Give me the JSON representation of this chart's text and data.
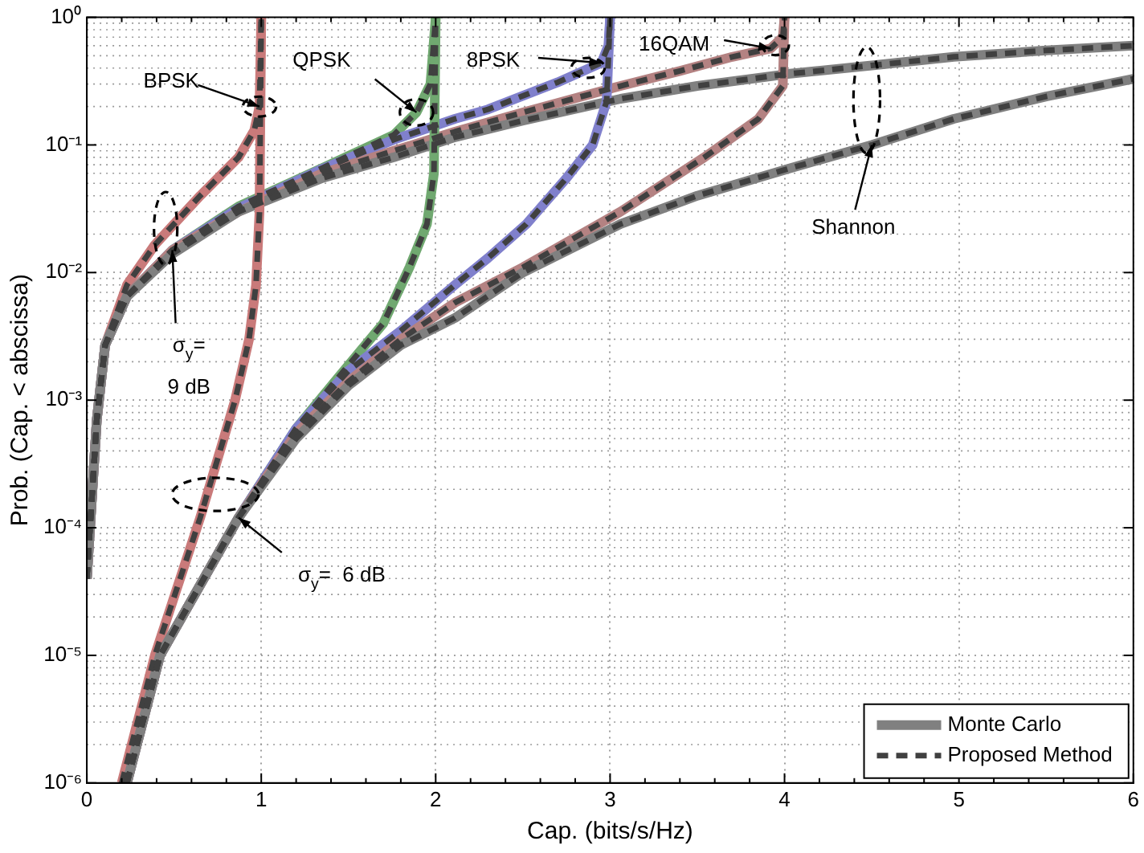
{
  "chart_data": {
    "type": "line",
    "xlabel": "Cap. (bits/s/Hz)",
    "ylabel": "Prob. (Cap. < abscissa)",
    "xlim": [
      0,
      6
    ],
    "xticks": [
      0,
      1,
      2,
      3,
      4,
      5,
      6
    ],
    "ylim": [
      1e-06,
      1
    ],
    "yticks": [
      {
        "value": 1e-06,
        "label": "10⁻⁶"
      },
      {
        "value": 1e-05,
        "label": "10⁻⁵"
      },
      {
        "value": 0.0001,
        "label": "10⁻⁴"
      },
      {
        "value": 0.001,
        "label": "10⁻³"
      },
      {
        "value": 0.01,
        "label": "10⁻²"
      },
      {
        "value": 0.1,
        "label": "10⁻¹"
      },
      {
        "value": 1,
        "label": "10⁰"
      }
    ],
    "log": "y",
    "grid": true,
    "legend": "bottom right",
    "marker": "none",
    "series": [
      {
        "type": "line",
        "color": "#c97a7a",
        "line_style": "solid",
        "x": [
          0,
          0.057,
          0.105,
          0.23,
          0.39,
          0.65,
          0.87,
          0.96,
          0.99,
          1
        ],
        "values": [
          4e-05,
          0.0007,
          0.0027,
          0.008,
          0.0165,
          0.04,
          0.08,
          0.13,
          0.2,
          1
        ]
      },
      {
        "type": "line",
        "color": "#70a870",
        "line_style": "solid",
        "x": [
          0,
          0.057,
          0.105,
          0.23,
          0.49,
          0.87,
          1.35,
          1.76,
          1.89,
          1.97,
          2
        ],
        "values": [
          4e-05,
          0.0007,
          0.0027,
          0.0065,
          0.015,
          0.033,
          0.066,
          0.12,
          0.18,
          0.3,
          1
        ]
      },
      {
        "type": "line",
        "color": "#8080cc",
        "line_style": "solid",
        "x": [
          0,
          0.057,
          0.105,
          0.23,
          0.49,
          0.87,
          1.35,
          1.76,
          2.11,
          2.3,
          2.7,
          2.95,
          2.99,
          3
        ],
        "values": [
          4e-05,
          0.0007,
          0.0027,
          0.0065,
          0.015,
          0.032,
          0.065,
          0.11,
          0.16,
          0.19,
          0.31,
          0.44,
          0.6,
          1
        ]
      },
      {
        "type": "line",
        "color": "#b48282",
        "line_style": "solid",
        "x": [
          0,
          0.057,
          0.105,
          0.23,
          0.49,
          0.87,
          1.35,
          1.76,
          2.11,
          2.5,
          3.06,
          3.4,
          3.7,
          3.92,
          3.99,
          4
        ],
        "values": [
          4e-05,
          0.0007,
          0.0027,
          0.0065,
          0.015,
          0.03,
          0.06,
          0.09,
          0.127,
          0.18,
          0.29,
          0.38,
          0.49,
          0.57,
          0.7,
          1
        ]
      },
      {
        "type": "line",
        "name": "Monte Carlo",
        "color": "#808080",
        "line_style": "solid",
        "x": [
          0,
          0.057,
          0.105,
          0.23,
          0.49,
          0.87,
          1.35,
          1.76,
          2.11,
          2.5,
          3.06,
          3.5,
          4.02,
          4.5,
          4.97,
          5.5,
          6
        ],
        "values": [
          4e-05,
          0.0007,
          0.0027,
          0.0065,
          0.014,
          0.03,
          0.055,
          0.08,
          0.115,
          0.155,
          0.23,
          0.29,
          0.36,
          0.42,
          0.49,
          0.55,
          0.6
        ]
      },
      {
        "type": "line",
        "color": "#c97a7a",
        "line_style": "solid",
        "x": [
          0.2,
          0.39,
          0.65,
          0.85,
          0.93,
          0.97,
          0.99,
          1
        ],
        "values": [
          1e-06,
          1e-05,
          0.00012,
          0.001,
          0.003,
          0.008,
          0.03,
          1
        ]
      },
      {
        "type": "line",
        "color": "#70a870",
        "line_style": "solid",
        "x": [
          0.23,
          0.42,
          0.87,
          1.2,
          1.44,
          1.7,
          1.85,
          1.95,
          1.99,
          2
        ],
        "values": [
          1e-06,
          1e-05,
          0.00012,
          0.0006,
          0.0015,
          0.004,
          0.011,
          0.024,
          0.06,
          1
        ]
      },
      {
        "type": "line",
        "color": "#8080cc",
        "line_style": "solid",
        "x": [
          0.23,
          0.42,
          0.87,
          1.2,
          1.5,
          1.8,
          2.11,
          2.3,
          2.52,
          2.75,
          2.9,
          2.98,
          3
        ],
        "values": [
          1e-06,
          1e-05,
          0.00012,
          0.0006,
          0.0017,
          0.0035,
          0.008,
          0.013,
          0.024,
          0.055,
          0.1,
          0.22,
          1
        ]
      },
      {
        "type": "line",
        "color": "#b48282",
        "line_style": "solid",
        "x": [
          0.23,
          0.42,
          0.87,
          1.2,
          1.5,
          1.8,
          2.11,
          2.5,
          3.06,
          3.54,
          3.85,
          3.99,
          4
        ],
        "values": [
          1e-06,
          1e-05,
          0.00012,
          0.00055,
          0.0014,
          0.003,
          0.0058,
          0.011,
          0.03,
          0.08,
          0.16,
          0.29,
          1
        ]
      },
      {
        "type": "line",
        "color": "#808080",
        "line_style": "solid",
        "x": [
          0.23,
          0.42,
          0.87,
          1.2,
          1.5,
          1.8,
          2.11,
          2.5,
          3.06,
          3.5,
          4.02,
          4.5,
          4.97,
          5.5,
          6
        ],
        "values": [
          1e-06,
          1e-05,
          0.00012,
          0.0005,
          0.0013,
          0.0027,
          0.0044,
          0.01,
          0.024,
          0.04,
          0.065,
          0.1,
          0.16,
          0.24,
          0.33
        ]
      },
      {
        "type": "line",
        "name": "Proposed Method",
        "color": "#404040",
        "line_style": "dashed",
        "x": [
          0,
          0.057,
          0.105,
          0.23,
          0.39,
          0.65,
          0.87,
          0.96,
          0.99,
          1
        ],
        "values": [
          4e-05,
          0.0007,
          0.0027,
          0.008,
          0.0165,
          0.04,
          0.08,
          0.13,
          0.2,
          1
        ]
      },
      {
        "type": "line",
        "color": "#404040",
        "line_style": "dashed",
        "x": [
          0,
          0.057,
          0.105,
          0.23,
          0.49,
          0.87,
          1.35,
          1.76,
          1.89,
          1.97,
          2
        ],
        "values": [
          4e-05,
          0.0007,
          0.0027,
          0.0065,
          0.015,
          0.033,
          0.066,
          0.12,
          0.18,
          0.3,
          1
        ]
      },
      {
        "type": "line",
        "color": "#404040",
        "line_style": "dashed",
        "x": [
          0,
          0.057,
          0.105,
          0.23,
          0.49,
          0.87,
          1.35,
          1.76,
          2.11,
          2.3,
          2.7,
          2.95,
          2.99,
          3
        ],
        "values": [
          4e-05,
          0.0007,
          0.0027,
          0.0065,
          0.015,
          0.032,
          0.065,
          0.11,
          0.16,
          0.19,
          0.31,
          0.44,
          0.6,
          1
        ]
      },
      {
        "type": "line",
        "color": "#404040",
        "line_style": "dashed",
        "x": [
          0,
          0.057,
          0.105,
          0.23,
          0.49,
          0.87,
          1.35,
          1.76,
          2.11,
          2.5,
          3.06,
          3.4,
          3.7,
          3.92,
          3.99,
          4
        ],
        "values": [
          4e-05,
          0.0007,
          0.0027,
          0.0065,
          0.015,
          0.03,
          0.06,
          0.09,
          0.127,
          0.18,
          0.29,
          0.38,
          0.49,
          0.57,
          0.7,
          1
        ]
      },
      {
        "type": "line",
        "color": "#404040",
        "line_style": "dashed",
        "x": [
          0,
          0.057,
          0.105,
          0.23,
          0.49,
          0.87,
          1.35,
          1.76,
          2.11,
          2.5,
          3.06,
          3.5,
          4.02,
          4.5,
          4.97,
          5.5,
          6
        ],
        "values": [
          4e-05,
          0.0007,
          0.0027,
          0.0065,
          0.014,
          0.03,
          0.055,
          0.08,
          0.115,
          0.155,
          0.23,
          0.29,
          0.36,
          0.42,
          0.49,
          0.55,
          0.6
        ]
      },
      {
        "type": "line",
        "color": "#404040",
        "line_style": "dashed",
        "x": [
          0.2,
          0.39,
          0.65,
          0.85,
          0.93,
          0.97,
          0.99,
          1
        ],
        "values": [
          1e-06,
          1e-05,
          0.00012,
          0.001,
          0.003,
          0.008,
          0.03,
          1
        ]
      },
      {
        "type": "line",
        "color": "#404040",
        "line_style": "dashed",
        "x": [
          0.23,
          0.42,
          0.87,
          1.2,
          1.44,
          1.7,
          1.85,
          1.95,
          1.99,
          2
        ],
        "values": [
          1e-06,
          1e-05,
          0.00012,
          0.0006,
          0.0015,
          0.004,
          0.011,
          0.024,
          0.06,
          1
        ]
      },
      {
        "type": "line",
        "color": "#404040",
        "line_style": "dashed",
        "x": [
          0.23,
          0.42,
          0.87,
          1.2,
          1.5,
          1.8,
          2.11,
          2.3,
          2.52,
          2.75,
          2.9,
          2.98,
          3
        ],
        "values": [
          1e-06,
          1e-05,
          0.00012,
          0.0006,
          0.0017,
          0.0035,
          0.008,
          0.013,
          0.024,
          0.055,
          0.1,
          0.22,
          1
        ]
      },
      {
        "type": "line",
        "color": "#404040",
        "line_style": "dashed",
        "x": [
          0.23,
          0.42,
          0.87,
          1.2,
          1.5,
          1.8,
          2.11,
          2.5,
          3.06,
          3.54,
          3.85,
          3.99,
          4
        ],
        "values": [
          1e-06,
          1e-05,
          0.00012,
          0.00055,
          0.0014,
          0.003,
          0.0058,
          0.011,
          0.03,
          0.08,
          0.16,
          0.29,
          1
        ]
      },
      {
        "type": "line",
        "color": "#404040",
        "line_style": "dashed",
        "x": [
          0.23,
          0.42,
          0.87,
          1.2,
          1.5,
          1.8,
          2.11,
          2.5,
          3.06,
          3.5,
          4.02,
          4.5,
          4.97,
          5.5,
          6
        ],
        "values": [
          1e-06,
          1e-05,
          0.00012,
          0.0005,
          0.0013,
          0.0027,
          0.0044,
          0.01,
          0.024,
          0.04,
          0.065,
          0.1,
          0.16,
          0.24,
          0.33
        ]
      }
    ],
    "annotations": [
      {
        "text": "BPSK",
        "x": 0.99,
        "y": 0.2
      },
      {
        "text": "QPSK",
        "x": 1.89,
        "y": 0.18
      },
      {
        "text": "8PSK",
        "x": 2.95,
        "y": 0.44
      },
      {
        "text": "16QAM",
        "x": 3.92,
        "y": 0.57
      },
      {
        "text": "Shannon",
        "x": 4.5,
        "y": 0.1
      },
      {
        "text": "σ$_{y}$= 9 dB",
        "x": 0.49,
        "y": 0.015
      },
      {
        "text": "σ$_{y}$=  6 dB",
        "x": 0.87,
        "y": 0.00012
      }
    ]
  }
}
